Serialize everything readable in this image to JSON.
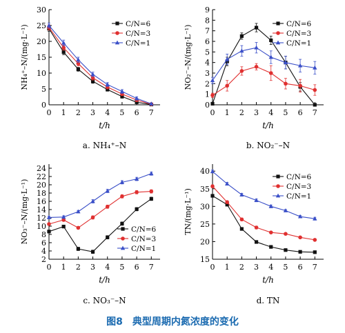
{
  "figure": {
    "caption": "图8　典型周期内氮浓度的变化"
  },
  "colors": {
    "cn6": "#111111",
    "cn3": "#e03030",
    "cn1": "#3a4fc8"
  },
  "chart_data": [
    {
      "type": "line",
      "panel_caption": "a. NH₄⁺–N",
      "ylabel": "NH₄⁺–N/(mg·L⁻¹)",
      "xlabel": "t/h",
      "xlim": [
        0,
        7.6
      ],
      "ylim": [
        0,
        30
      ],
      "xticks": [
        0,
        1,
        2,
        3,
        4,
        5,
        6,
        7
      ],
      "yticks": [
        0,
        5,
        10,
        15,
        20,
        25,
        30
      ],
      "legend_position": "top-right",
      "x": [
        0,
        1,
        2,
        3,
        4,
        5,
        6,
        7
      ],
      "series": [
        {
          "name": "C/N=6",
          "marker": "square",
          "values": [
            24.0,
            16.6,
            11.2,
            7.4,
            4.8,
            2.6,
            0.8,
            0.1
          ],
          "err": [
            0.8,
            0.8,
            0.6,
            0.6,
            0.5,
            0.5,
            0.4,
            0.2
          ]
        },
        {
          "name": "C/N=3",
          "marker": "circle",
          "values": [
            24.4,
            18.0,
            13.0,
            8.5,
            5.6,
            3.4,
            1.5,
            0.2
          ],
          "err": [
            0.8,
            0.8,
            0.7,
            0.7,
            0.6,
            0.5,
            0.5,
            0.2
          ]
        },
        {
          "name": "C/N=1",
          "marker": "triangle",
          "values": [
            25.0,
            19.5,
            14.2,
            9.6,
            6.4,
            4.2,
            2.0,
            0.3
          ],
          "err": [
            0.8,
            0.9,
            0.8,
            0.7,
            0.6,
            0.6,
            0.5,
            0.2
          ]
        }
      ]
    },
    {
      "type": "line",
      "panel_caption": "b. NO₂⁻–N",
      "ylabel": "NO₂⁻–N/(mg·L⁻¹)",
      "xlabel": "t/h",
      "xlim": [
        0,
        7.6
      ],
      "ylim": [
        0,
        9
      ],
      "xticks": [
        0,
        1,
        2,
        3,
        4,
        5,
        6,
        7
      ],
      "yticks": [
        0,
        1,
        2,
        3,
        4,
        5,
        6,
        7,
        8,
        9
      ],
      "legend_position": "top-right",
      "x": [
        0,
        1,
        2,
        3,
        4,
        5,
        6,
        7
      ],
      "series": [
        {
          "name": "C/N=6",
          "marker": "square",
          "values": [
            0.1,
            4.1,
            6.5,
            7.3,
            6.1,
            4.0,
            1.7,
            0.0
          ],
          "err": [
            0.1,
            0.4,
            0.3,
            0.4,
            0.4,
            0.6,
            0.4,
            0.1
          ]
        },
        {
          "name": "C/N=3",
          "marker": "circle",
          "values": [
            0.9,
            1.8,
            3.2,
            3.6,
            3.0,
            2.0,
            1.8,
            1.4
          ],
          "err": [
            0.2,
            0.5,
            0.4,
            0.3,
            0.7,
            0.5,
            0.6,
            0.5
          ]
        },
        {
          "name": "C/N=1",
          "marker": "triangle",
          "values": [
            2.3,
            4.3,
            5.1,
            5.4,
            4.5,
            4.0,
            3.7,
            3.5
          ],
          "err": [
            0.3,
            0.5,
            0.5,
            0.5,
            0.6,
            0.6,
            0.6,
            0.6
          ]
        }
      ]
    },
    {
      "type": "line",
      "panel_caption": "c. NO₃⁻–N",
      "ylabel": "NO₃⁻–N/(mg·L⁻¹)",
      "xlabel": "t/h",
      "xlim": [
        0,
        7.6
      ],
      "ylim": [
        2,
        25
      ],
      "xticks": [
        0,
        1,
        2,
        3,
        4,
        5,
        6,
        7
      ],
      "yticks": [
        2,
        4,
        6,
        8,
        10,
        12,
        14,
        16,
        18,
        20,
        22,
        24
      ],
      "legend_position": "bottom-right",
      "x": [
        0,
        1,
        2,
        3,
        4,
        5,
        6,
        7
      ],
      "series": [
        {
          "name": "C/N=6",
          "marker": "square",
          "values": [
            8.7,
            9.9,
            4.5,
            3.8,
            7.3,
            10.6,
            14.1,
            16.6
          ],
          "err": [
            0.3,
            0.3,
            0.4,
            0.4,
            0.4,
            0.4,
            0.4,
            0.4
          ]
        },
        {
          "name": "C/N=3",
          "marker": "circle",
          "values": [
            10.5,
            11.5,
            9.6,
            12.1,
            14.7,
            17.2,
            18.2,
            18.4
          ],
          "err": [
            0.3,
            0.3,
            0.3,
            0.4,
            0.4,
            0.4,
            0.4,
            0.4
          ]
        },
        {
          "name": "C/N=1",
          "marker": "triangle",
          "values": [
            12.1,
            12.2,
            13.5,
            16.0,
            18.5,
            20.6,
            21.4,
            22.7
          ],
          "err": [
            0.3,
            0.3,
            0.3,
            0.4,
            0.4,
            0.4,
            0.4,
            0.4
          ]
        }
      ]
    },
    {
      "type": "line",
      "panel_caption": "d. TN",
      "ylabel": "TN/(mg·L⁻¹)",
      "xlabel": "t/h",
      "xlim": [
        0,
        7.6
      ],
      "ylim": [
        15,
        42
      ],
      "xticks": [
        0,
        1,
        2,
        3,
        4,
        5,
        6,
        7
      ],
      "yticks": [
        15,
        20,
        25,
        30,
        35,
        40
      ],
      "legend_position": "top-right",
      "x": [
        0,
        1,
        2,
        3,
        4,
        5,
        6,
        7
      ],
      "series": [
        {
          "name": "C/N=6",
          "marker": "square",
          "values": [
            33.0,
            30.5,
            23.6,
            19.9,
            18.5,
            17.6,
            17.1,
            17.0
          ],
          "err": [
            0.4,
            0.4,
            0.4,
            0.4,
            0.3,
            0.3,
            0.3,
            0.3
          ]
        },
        {
          "name": "C/N=3",
          "marker": "circle",
          "values": [
            35.7,
            31.2,
            26.3,
            24.0,
            22.6,
            22.2,
            21.2,
            20.5
          ],
          "err": [
            0.4,
            0.4,
            0.4,
            0.4,
            0.3,
            0.3,
            0.3,
            0.3
          ]
        },
        {
          "name": "C/N=1",
          "marker": "triangle",
          "values": [
            39.9,
            36.4,
            33.3,
            31.7,
            30.0,
            28.8,
            27.1,
            26.5
          ],
          "err": [
            0.4,
            0.4,
            0.4,
            0.4,
            0.4,
            0.3,
            0.3,
            0.4
          ]
        }
      ]
    }
  ]
}
